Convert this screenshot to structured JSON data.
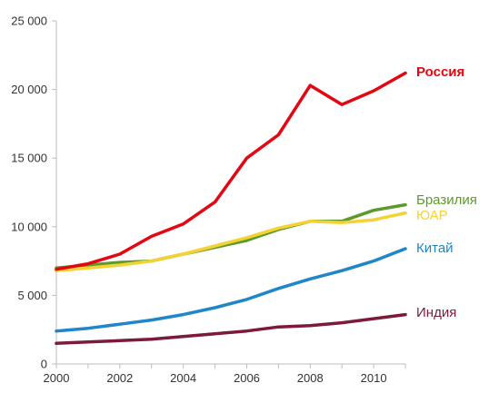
{
  "chart_data": {
    "type": "line",
    "title": "",
    "xlabel": "",
    "ylabel": "",
    "xlim": [
      2000,
      2011
    ],
    "ylim": [
      0,
      25000
    ],
    "grid": false,
    "legend": "inline-right",
    "x_ticks": [
      "2000",
      "2002",
      "2004",
      "2006",
      "2008",
      "2010"
    ],
    "y_ticks": [
      "0",
      "5 000",
      "10 000",
      "15 000",
      "20 000",
      "25 000"
    ],
    "x": [
      2000,
      2001,
      2002,
      2003,
      2004,
      2005,
      2006,
      2007,
      2008,
      2009,
      2010,
      2011
    ],
    "series": [
      {
        "name": "Россия",
        "color": "#e30613",
        "bold": true,
        "values": [
          6900,
          7300,
          8000,
          9300,
          10200,
          11800,
          15000,
          16700,
          20300,
          18900,
          19900,
          21200
        ]
      },
      {
        "name": "Бразилия",
        "color": "#5b9a2b",
        "bold": false,
        "values": [
          7000,
          7200,
          7400,
          7500,
          8000,
          8500,
          9000,
          9800,
          10400,
          10400,
          11200,
          11600
        ]
      },
      {
        "name": "ЮАР",
        "color": "#f5d233",
        "bold": false,
        "values": [
          6800,
          7000,
          7200,
          7500,
          8000,
          8600,
          9200,
          9900,
          10400,
          10300,
          10500,
          11000
        ]
      },
      {
        "name": "Китай",
        "color": "#1f86c9",
        "bold": false,
        "values": [
          2400,
          2600,
          2900,
          3200,
          3600,
          4100,
          4700,
          5500,
          6200,
          6800,
          7500,
          8400
        ]
      },
      {
        "name": "Индия",
        "color": "#7b1a3a",
        "bold": false,
        "values": [
          1500,
          1600,
          1700,
          1800,
          2000,
          2200,
          2400,
          2700,
          2800,
          3000,
          3300,
          3600
        ]
      }
    ]
  }
}
